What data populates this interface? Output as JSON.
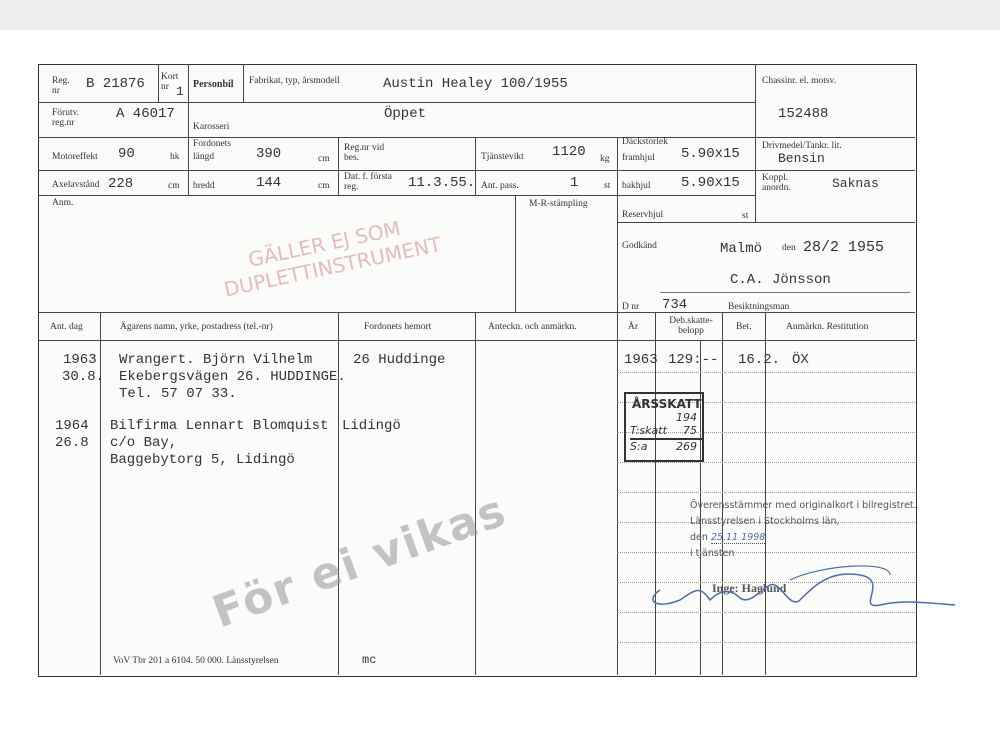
{
  "header": {
    "reg_label": "Reg. nr",
    "reg_value": "B 21876",
    "kort_label": "Kort nr",
    "kort_value": "1",
    "category": "Personbil",
    "fabrikat_label": "Fabrikat, typ, årsmodell",
    "fabrikat_value": "Austin Healey 100/1955",
    "chassis_label": "Chassinr. el. motsv.",
    "chassis_value": "152488"
  },
  "row2": {
    "forutv_label": "Förutv. reg.nr",
    "forutv_value": "A 46017",
    "karosseri_label": "Karosseri",
    "karosseri_value": "Öppet"
  },
  "specs": {
    "motor_label": "Motoreffekt",
    "motor_value": "90",
    "motor_unit": "hk",
    "fordonets_label": "Fordonets",
    "langd_label": "längd",
    "langd_value": "390",
    "langd_unit": "cm",
    "regnr_bes_label": "Reg.nr vid bes.",
    "tjanstevikt_label": "Tjänstevikt",
    "tjanstevikt_value": "1120",
    "tjanstevikt_unit": "kg",
    "dack_label": "Däckstorlek",
    "framhjul_label": "framhjul",
    "framhjul_value": "5.90x15",
    "drivmedel_label": "Drivmedel/Tankr. lit.",
    "drivmedel_value": "Bensin",
    "axel_label": "Axelavstånd",
    "axel_value": "228",
    "axel_unit": "cm",
    "bredd_label": "bredd",
    "bredd_value": "144",
    "bredd_unit": "cm",
    "datf_label": "Dat. f. första reg.",
    "datf_value": "11.3.55.",
    "antpass_label": "Ant. pass.",
    "antpass_value": "1",
    "antpass_unit": "st",
    "bakhjul_label": "bakhjul",
    "bakhjul_value": "5.90x15",
    "koppl_label": "Koppl. anordn.",
    "koppl_value": "Saknas"
  },
  "anm": {
    "anm_label": "Anm.",
    "mr_label": "M-R-stämpling",
    "reserv_label": "Reservhjul",
    "reserv_unit": "st",
    "godkand_label": "Godkänd",
    "godkand_place": "Malmö",
    "den_label": "den",
    "godkand_date": "28/2 1955",
    "inspector": "C.A. Jönsson",
    "dnr_label": "D nr",
    "dnr_value": "734",
    "besiktning_label": "Besiktningsman"
  },
  "table": {
    "headers": [
      "Ant. dag",
      "Ägarens namn, yrke, postadress (tel.-nr)",
      "Fordonets hemort",
      "Anteckn. och anmärkn.",
      "År",
      "Deb.skatte-belopp",
      "Bet.",
      "Anmärkn. Restitution"
    ],
    "owners": [
      {
        "date": [
          "1963",
          "30.8."
        ],
        "owner": [
          "Wrangert. Björn Vilhelm",
          "Ekebergsvägen 26. HUDDINGE.",
          "Tel. 57 07 33."
        ],
        "hemort": "26 Huddinge"
      },
      {
        "date": [
          "1964",
          "26.8"
        ],
        "owner": [
          "Bilfirma Lennart Blomquist",
          "c/o Bay,",
          "Baggebytorg 5, Lidingö"
        ],
        "hemort": "Lidingö"
      }
    ],
    "tax": {
      "year": "1963",
      "amount": "129:--",
      "paid": "16.2.",
      "remark": "ÖX"
    },
    "footer_print": "VoV Tbr 201 a 6104. 50 000. Länsstyrelsen",
    "footer_mc": "mc"
  },
  "tax_stamp": {
    "title": "ÅRSSKATT",
    "arsskatt": "194",
    "tskatt_label": "T:skatt",
    "tskatt": "75",
    "sum_label": "S:a",
    "sum": "269"
  },
  "certification": {
    "line1": "Överensstämmer med originalkort i bilregistret.",
    "line2": "Länsstyrelsen i Stockholms län,",
    "den": "den",
    "date": "25.11 1998",
    "line4": "i tjänsten",
    "signer": "Inge: Haglund"
  },
  "watermarks": {
    "main": "För ei vikas",
    "stamp_line1": "GÄLLER EJ SOM",
    "stamp_line2": "DUPLETTINSTRUMENT"
  },
  "colors": {
    "stamp_red": "#c85a64",
    "signature_blue": "#4a6fa5"
  }
}
